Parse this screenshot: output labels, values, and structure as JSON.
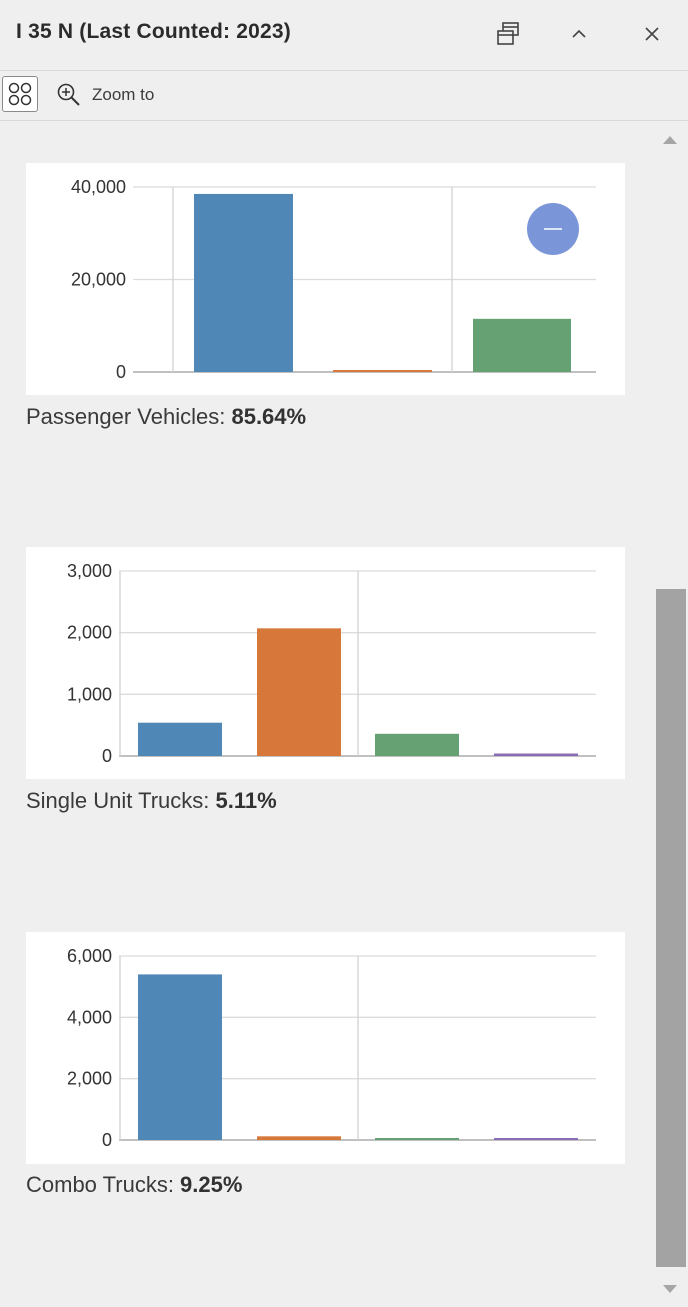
{
  "header": {
    "title": "I 35 N (Last Counted: 2023)"
  },
  "toolbar": {
    "zoom_label": "Zoom to"
  },
  "colors": {
    "blue": "#4f87b6",
    "orange": "#d7773a",
    "green": "#65a173",
    "purple": "#8a6bb8"
  },
  "chart_data": [
    {
      "type": "bar",
      "ylim": [
        0,
        40000
      ],
      "yticks": [
        0,
        20000,
        40000
      ],
      "ytick_labels": [
        "0",
        "20,000",
        "40,000"
      ],
      "values": [
        38500,
        300,
        11500
      ],
      "caption": "Passenger Vehicles: ",
      "percent": "85.64%"
    },
    {
      "type": "bar",
      "ylim": [
        0,
        3000
      ],
      "yticks": [
        0,
        1000,
        2000,
        3000
      ],
      "ytick_labels": [
        "0",
        "1,000",
        "2,000",
        "3,000"
      ],
      "values": [
        540,
        2070,
        360,
        40
      ],
      "caption": "Single Unit Trucks: ",
      "percent": "5.11%"
    },
    {
      "type": "bar",
      "ylim": [
        0,
        6000
      ],
      "yticks": [
        0,
        2000,
        4000,
        6000
      ],
      "ytick_labels": [
        "0",
        "2,000",
        "4,000",
        "6,000"
      ],
      "values": [
        5400,
        120,
        60,
        20
      ],
      "caption": "Combo Trucks: ",
      "percent": "9.25%"
    }
  ]
}
